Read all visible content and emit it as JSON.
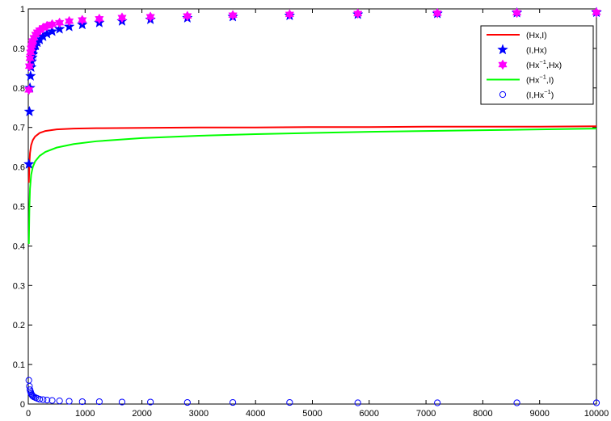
{
  "chart_data": {
    "type": "line",
    "title": "",
    "xlabel": "",
    "ylabel": "",
    "xlim": [
      0,
      10000
    ],
    "ylim": [
      0,
      1
    ],
    "grid": false,
    "legend_position": "top-right",
    "x_ticks": [
      {
        "value": 0,
        "label": "0"
      },
      {
        "value": 1000,
        "label": "1000"
      },
      {
        "value": 2000,
        "label": "2000"
      },
      {
        "value": 3000,
        "label": "3000"
      },
      {
        "value": 4000,
        "label": "4000"
      },
      {
        "value": 5000,
        "label": "5000"
      },
      {
        "value": 6000,
        "label": "6000"
      },
      {
        "value": 7000,
        "label": "7000"
      },
      {
        "value": 8000,
        "label": "8000"
      },
      {
        "value": 9000,
        "label": "9000"
      },
      {
        "value": 10000,
        "label": "10000"
      }
    ],
    "y_ticks": [
      {
        "value": 0,
        "label": "0"
      },
      {
        "value": 0.1,
        "label": "0.1"
      },
      {
        "value": 0.2,
        "label": "0.2"
      },
      {
        "value": 0.3,
        "label": "0.3"
      },
      {
        "value": 0.4,
        "label": "0.4"
      },
      {
        "value": 0.5,
        "label": "0.5"
      },
      {
        "value": 0.6,
        "label": "0.6"
      },
      {
        "value": 0.7,
        "label": "0.7"
      },
      {
        "value": 0.8,
        "label": "0.8"
      },
      {
        "value": 0.9,
        "label": "0.9"
      },
      {
        "value": 1,
        "label": "1"
      }
    ],
    "series": [
      {
        "name": "(Hx,I)",
        "legend_base": "(Hx,I)",
        "legend_sup": "",
        "legend_tail": "",
        "style": "line",
        "color": "#ff0000",
        "x": [
          10,
          20,
          30,
          50,
          80,
          120,
          200,
          300,
          500,
          800,
          1200,
          2000,
          3000,
          4000,
          5000,
          6000,
          7000,
          8000,
          9000,
          10000
        ],
        "y": [
          0.56,
          0.61,
          0.635,
          0.655,
          0.668,
          0.677,
          0.686,
          0.691,
          0.695,
          0.697,
          0.698,
          0.699,
          0.7,
          0.7,
          0.701,
          0.701,
          0.702,
          0.702,
          0.702,
          0.703
        ]
      },
      {
        "name": "(I,Hx)",
        "legend_base": "(I,Hx)",
        "legend_sup": "",
        "legend_tail": "",
        "style": "star",
        "color": "#0000ff",
        "x": [
          10,
          20,
          30,
          40,
          50,
          60,
          70,
          80,
          100,
          130,
          160,
          200,
          260,
          330,
          420,
          550,
          720,
          950,
          1250,
          1650,
          2150,
          2800,
          3600,
          4600,
          5800,
          7200,
          8600,
          10000
        ],
        "y": [
          0.607,
          0.74,
          0.8,
          0.83,
          0.852,
          0.867,
          0.877,
          0.885,
          0.896,
          0.907,
          0.915,
          0.922,
          0.93,
          0.937,
          0.943,
          0.949,
          0.955,
          0.96,
          0.965,
          0.969,
          0.973,
          0.977,
          0.98,
          0.983,
          0.986,
          0.988,
          0.99,
          0.991
        ]
      },
      {
        "name": "(Hx^{-1},Hx)",
        "legend_base": "(Hx",
        "legend_sup": "−1",
        "legend_tail": ",Hx)",
        "style": "hexagram",
        "color": "#ff00ff",
        "x": [
          10,
          20,
          30,
          40,
          50,
          60,
          70,
          80,
          100,
          130,
          160,
          200,
          260,
          330,
          420,
          550,
          720,
          950,
          1250,
          1650,
          2150,
          2800,
          3600,
          4600,
          5800,
          7200,
          8600,
          10000
        ],
        "y": [
          0.795,
          0.855,
          0.875,
          0.89,
          0.9,
          0.908,
          0.914,
          0.919,
          0.927,
          0.935,
          0.941,
          0.946,
          0.952,
          0.957,
          0.961,
          0.965,
          0.969,
          0.972,
          0.975,
          0.978,
          0.98,
          0.982,
          0.984,
          0.986,
          0.988,
          0.989,
          0.99,
          0.991
        ]
      },
      {
        "name": "(Hx^{-1},I)",
        "legend_base": "(Hx",
        "legend_sup": "−1",
        "legend_tail": ",I)",
        "style": "line",
        "color": "#00ff00",
        "x": [
          10,
          20,
          30,
          50,
          80,
          120,
          200,
          300,
          500,
          800,
          1200,
          2000,
          3000,
          4000,
          5000,
          6000,
          7000,
          8000,
          9000,
          10000
        ],
        "y": [
          0.405,
          0.5,
          0.545,
          0.58,
          0.6,
          0.614,
          0.628,
          0.638,
          0.649,
          0.658,
          0.665,
          0.673,
          0.679,
          0.683,
          0.686,
          0.689,
          0.691,
          0.693,
          0.695,
          0.697
        ]
      },
      {
        "name": "(I,Hx^{-1})",
        "legend_base": "(I,Hx",
        "legend_sup": "−1",
        "legend_tail": ")",
        "style": "circle",
        "color": "#0000ff",
        "x": [
          10,
          20,
          30,
          40,
          50,
          60,
          70,
          80,
          100,
          130,
          160,
          200,
          260,
          330,
          420,
          550,
          720,
          950,
          1250,
          1650,
          2150,
          2800,
          3600,
          4600,
          5800,
          7200,
          8600,
          10000
        ],
        "y": [
          0.06,
          0.045,
          0.036,
          0.031,
          0.027,
          0.024,
          0.022,
          0.02,
          0.018,
          0.016,
          0.014,
          0.012,
          0.011,
          0.01,
          0.009,
          0.008,
          0.007,
          0.006,
          0.006,
          0.005,
          0.005,
          0.004,
          0.004,
          0.004,
          0.003,
          0.003,
          0.003,
          0.003
        ]
      }
    ]
  }
}
